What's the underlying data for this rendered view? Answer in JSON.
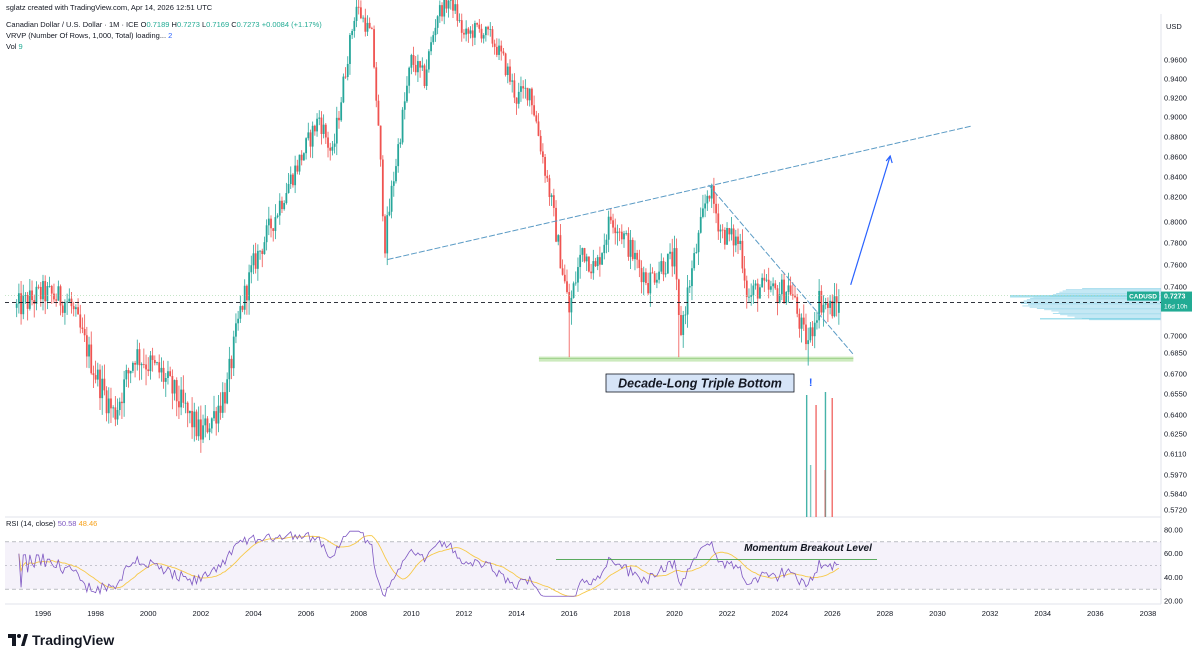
{
  "header": {
    "created_by": "sglatz created with TradingView.com, Apr 14, 2026 12:51 UTC",
    "symbol_title": "Canadian Dollar / U.S. Dollar · 1M · ICE",
    "ohlc": {
      "o_label": "O",
      "o": "0.7189",
      "h_label": "H",
      "h": "0.7273",
      "l_label": "L",
      "l": "0.7169",
      "c_label": "C",
      "c": "0.7273",
      "change": "+0.0084 (+1.17%)"
    },
    "vrvp_label": "VRVP (Number Of Rows, 1,000, Total) loading...",
    "vrvp_value": "2",
    "vol_label": "Vol",
    "vol_value": "9"
  },
  "price_axis": {
    "currency": "USD",
    "ticks": [
      "0.9600",
      "0.9400",
      "0.9200",
      "0.9000",
      "0.8800",
      "0.8600",
      "0.8400",
      "0.8200",
      "0.8000",
      "0.7800",
      "0.7600",
      "0.7400",
      "0.7000",
      "0.6850",
      "0.6700",
      "0.6550",
      "0.6400",
      "0.6250",
      "0.6110",
      "0.5970",
      "0.5840",
      "0.5720"
    ],
    "symbol_badge": "CADUSD",
    "last_price": "0.7273",
    "countdown": "16d 10h"
  },
  "rsi": {
    "label": "RSI (14, close)",
    "value_rsi": "50.58",
    "value_ma": "48.46",
    "ticks": [
      "80.00",
      "60.00",
      "40.00",
      "20.00"
    ],
    "upper_band": 70,
    "lower_band": 30,
    "breakout_level": 55
  },
  "time_axis": {
    "ticks": [
      "1996",
      "1998",
      "2000",
      "2002",
      "2004",
      "2006",
      "2008",
      "2010",
      "2012",
      "2014",
      "2016",
      "2018",
      "2020",
      "2022",
      "2024",
      "2026",
      "2028",
      "2030",
      "2032",
      "2034",
      "2036",
      "2038"
    ]
  },
  "annotations": {
    "triple_bottom": "Decade-Long Triple Bottom",
    "exclamation": "!",
    "momentum": "Momentum Breakout Level"
  },
  "brand": {
    "name": "TradingView",
    "logo_text": "17"
  },
  "colors": {
    "up": "#26a69a",
    "down": "#ef5350",
    "trend": "#5b9bc5",
    "arrow": "#2962ff",
    "rsi": "#7e57c2",
    "rsi_ma": "#f7c948",
    "support": "#b7e1a1",
    "badge": "#22ab94"
  },
  "chart_data": {
    "type": "candlestick",
    "title": "Canadian Dollar / U.S. Dollar",
    "x_range": [
      "1995",
      "2038"
    ],
    "y_range": [
      0.572,
      0.98
    ],
    "price_waypoints": [
      [
        "1995.0",
        0.723
      ],
      [
        "1996.0",
        0.735
      ],
      [
        "1997.0",
        0.728
      ],
      [
        "1998.0",
        0.67
      ],
      [
        "1998.7",
        0.64
      ],
      [
        "1999.5",
        0.685
      ],
      [
        "2000.5",
        0.67
      ],
      [
        "2001.5",
        0.64
      ],
      [
        "2002.0",
        0.625
      ],
      [
        "2002.5",
        0.64
      ],
      [
        "2003.0",
        0.66
      ],
      [
        "2003.5",
        0.72
      ],
      [
        "2004.0",
        0.76
      ],
      [
        "2005.0",
        0.815
      ],
      [
        "2006.0",
        0.87
      ],
      [
        "2006.5",
        0.9
      ],
      [
        "2007.0",
        0.86
      ],
      [
        "2007.5",
        0.95
      ],
      [
        "2007.9",
        1.03
      ],
      [
        "2008.5",
        0.99
      ],
      [
        "2009.0",
        0.78
      ],
      [
        "2009.5",
        0.87
      ],
      [
        "2010.0",
        0.96
      ],
      [
        "2010.5",
        0.94
      ],
      [
        "2011.0",
        1.02
      ],
      [
        "2011.5",
        1.04
      ],
      [
        "2012.0",
        0.99
      ],
      [
        "2012.5",
        1.0
      ],
      [
        "2013.0",
        0.99
      ],
      [
        "2013.5",
        0.96
      ],
      [
        "2014.0",
        0.92
      ],
      [
        "2014.5",
        0.93
      ],
      [
        "2015.0",
        0.86
      ],
      [
        "2015.5",
        0.79
      ],
      [
        "2016.0",
        0.72
      ],
      [
        "2016.5",
        0.775
      ],
      [
        "2017.0",
        0.755
      ],
      [
        "2017.6",
        0.805
      ],
      [
        "2018.0",
        0.79
      ],
      [
        "2018.5",
        0.765
      ],
      [
        "2019.0",
        0.745
      ],
      [
        "2019.5",
        0.76
      ],
      [
        "2020.0",
        0.765
      ],
      [
        "2020.2",
        0.7
      ],
      [
        "2020.8",
        0.77
      ],
      [
        "2021.3",
        0.83
      ],
      [
        "2021.8",
        0.79
      ],
      [
        "2022.5",
        0.78
      ],
      [
        "2022.8",
        0.73
      ],
      [
        "2023.2",
        0.74
      ],
      [
        "2023.8",
        0.735
      ],
      [
        "2024.4",
        0.74
      ],
      [
        "2024.9",
        0.7
      ],
      [
        "2025.1",
        0.695
      ],
      [
        "2025.5",
        0.73
      ],
      [
        "2025.9",
        0.722
      ],
      [
        "2026.3",
        0.7273
      ]
    ],
    "support_level": 0.681,
    "last_price": 0.7273,
    "vol_bar_years": [
      2025.0,
      2025.3,
      2025.6,
      2025.8
    ]
  }
}
